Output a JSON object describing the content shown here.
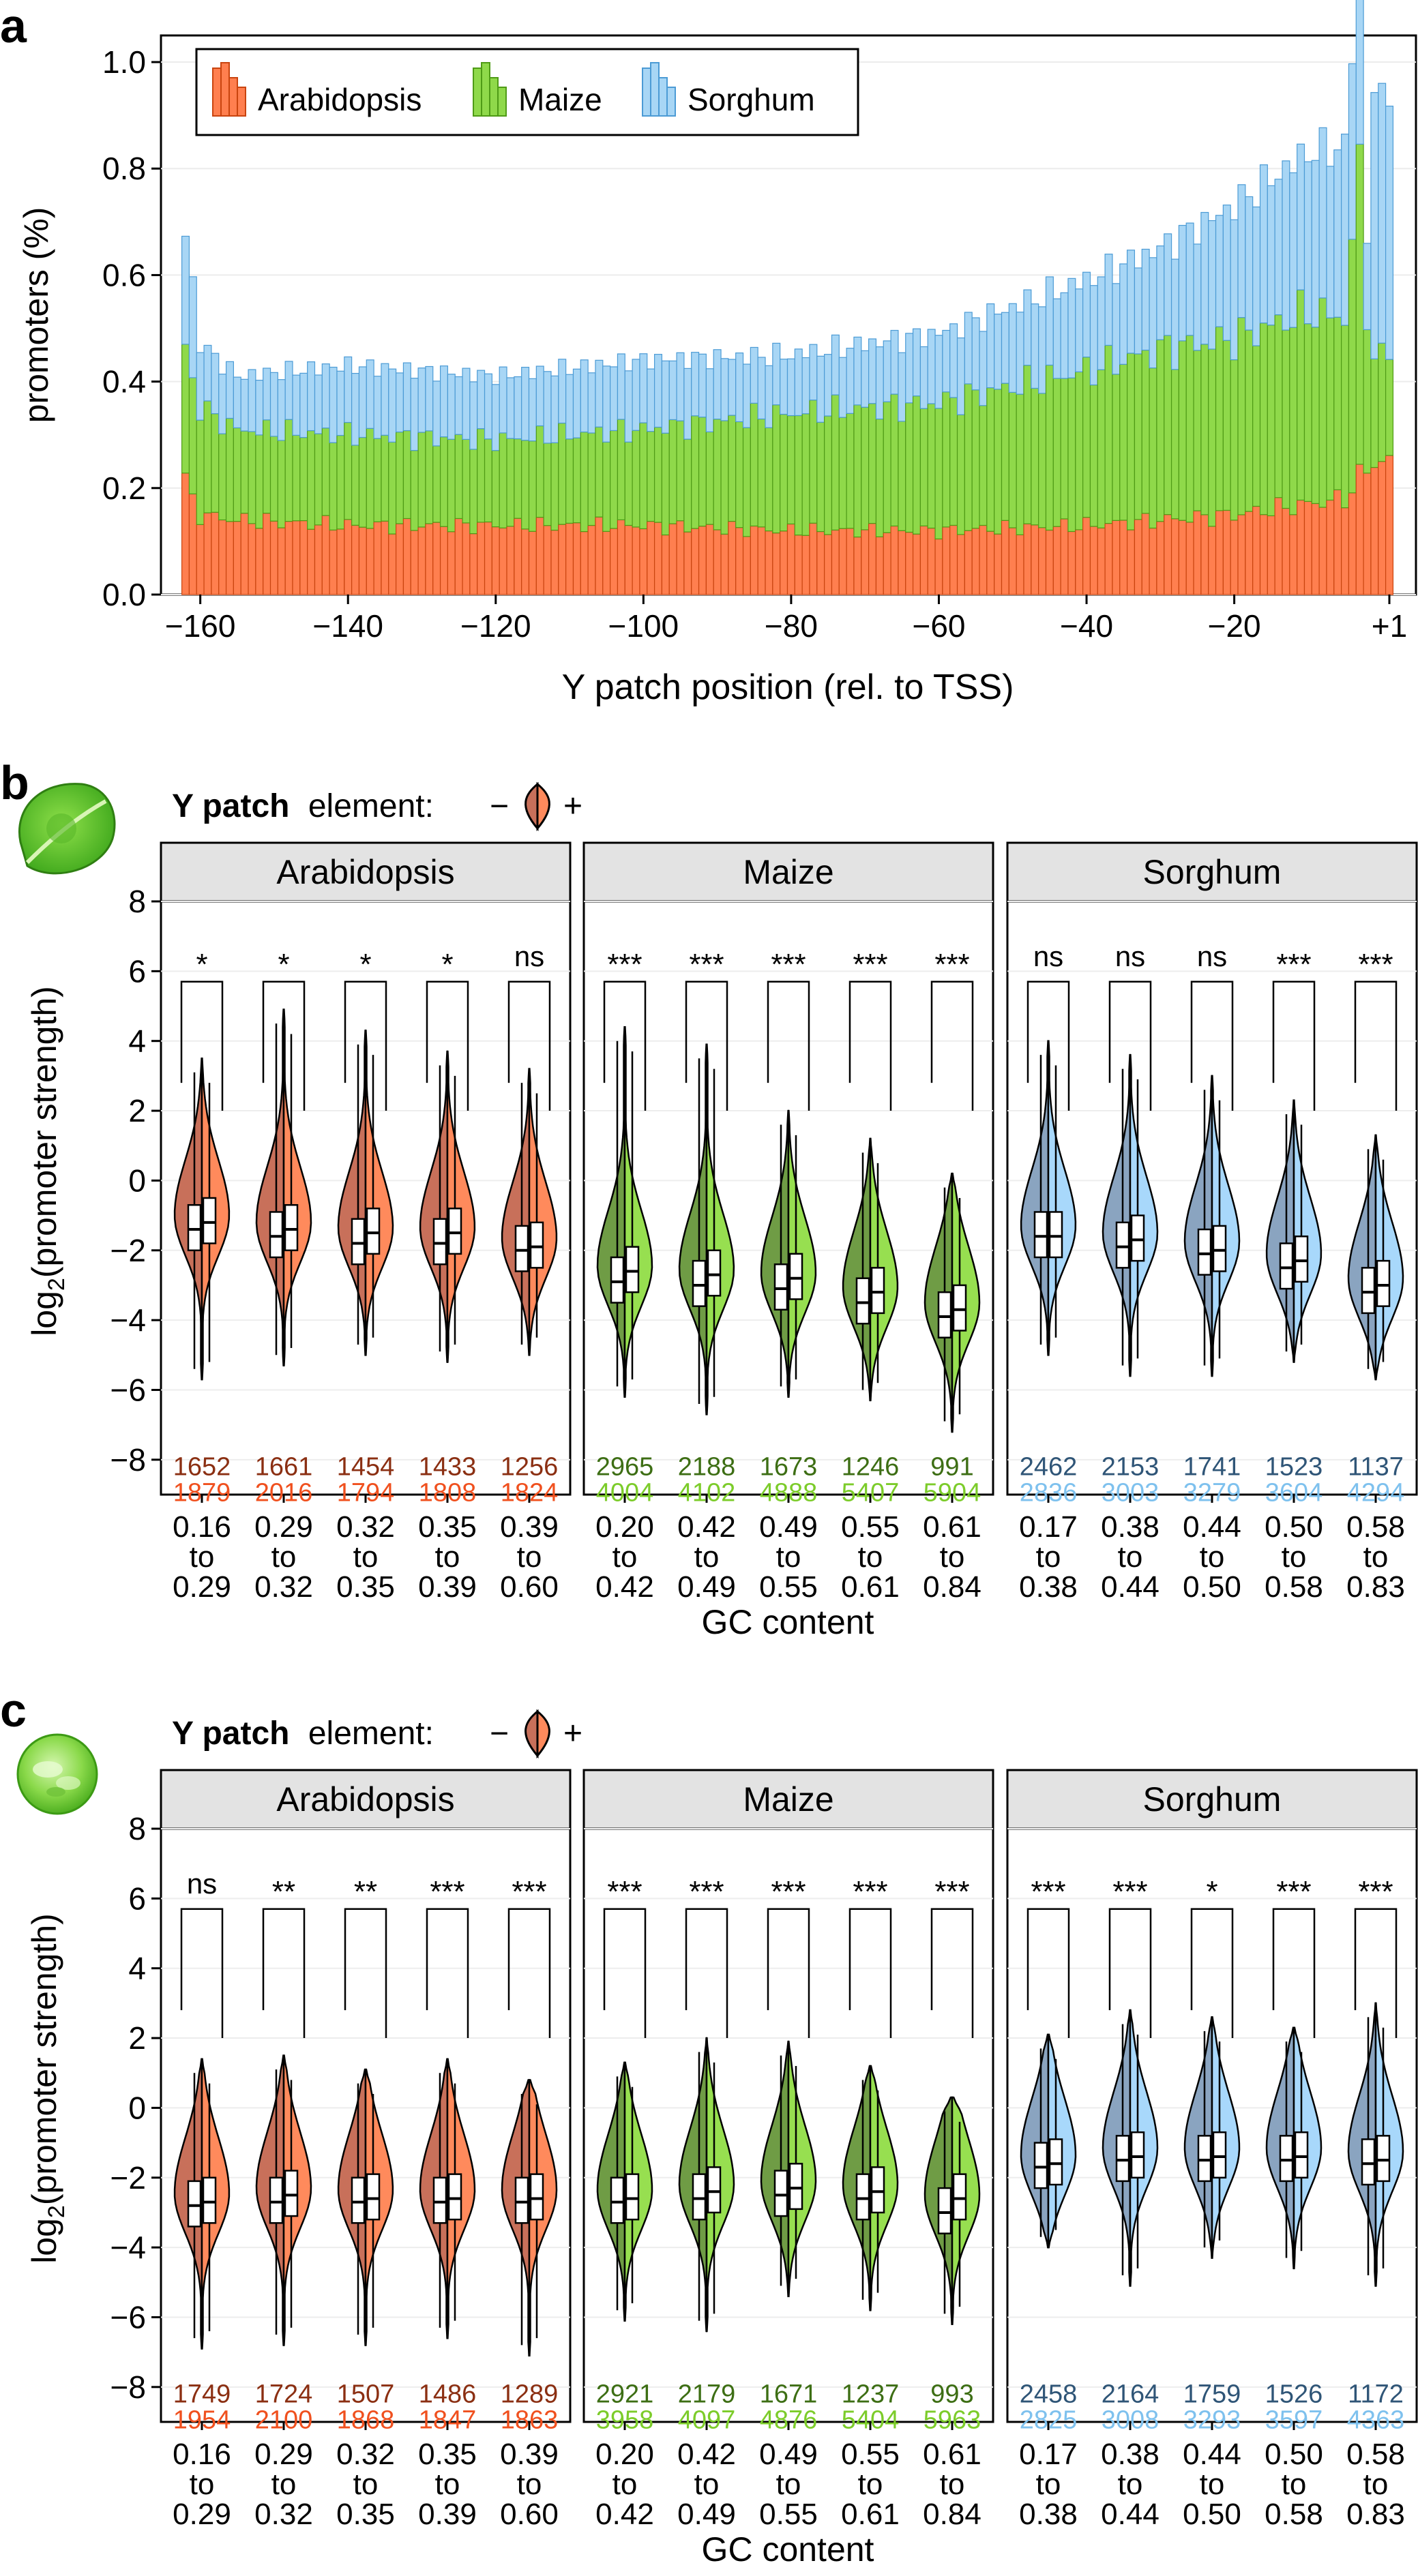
{
  "panel_letters": {
    "a": "a",
    "b": "b",
    "c": "c"
  },
  "element_legend": {
    "title_bold": "Y patch",
    "title_rest": "element:",
    "minus": "−",
    "plus": "+"
  },
  "colors": {
    "arabidopsis_light": "#ff8a5c",
    "arabidopsis_dark": "#c8705a",
    "arabidopsis_text_dark": "#8b2f12",
    "arabidopsis_text_light": "#f0501e",
    "maize_light": "#97df50",
    "maize_dark": "#6f9c45",
    "maize_text_dark": "#3d6e14",
    "maize_text_light": "#7ccc2a",
    "sorghum_light": "#a8d8fb",
    "sorghum_dark": "#8aa4c0",
    "sorghum_text_dark": "#2f5577",
    "sorghum_text_light": "#7ec1ee",
    "strip_bg": "#e3e3e3"
  },
  "chart_data": [
    {
      "type": "bar",
      "stacked": true,
      "xlabel": "Y patch position (rel. to TSS)",
      "ylabel": "promoters (%)",
      "ylim": [
        0,
        1.05
      ],
      "yticks": [
        "0.0",
        "0.2",
        "0.4",
        "0.6",
        "0.8",
        "1.0"
      ],
      "xticks": [
        "−160",
        "−140",
        "−120",
        "−100",
        "−80",
        "−60",
        "−40",
        "−20",
        "+1"
      ],
      "x_range": [
        -162,
        1
      ],
      "legend_position": "top-left",
      "series": [
        {
          "name": "Arabidopsis",
          "color": "#ff7f4f",
          "anchors_x": [
            -162,
            -160,
            -155,
            -140,
            -120,
            -100,
            -80,
            -60,
            -40,
            -20,
            -10,
            -5,
            -3,
            -1
          ],
          "anchors_y": [
            0.21,
            0.15,
            0.14,
            0.13,
            0.13,
            0.13,
            0.12,
            0.12,
            0.13,
            0.15,
            0.17,
            0.18,
            0.22,
            0.25
          ]
        },
        {
          "name": "Maize",
          "color": "#8fd94a",
          "anchors_x": [
            -162,
            -160,
            -155,
            -140,
            -120,
            -100,
            -80,
            -60,
            -40,
            -30,
            -20,
            -10,
            -5,
            -3,
            -2,
            -1
          ],
          "anchors_y": [
            0.25,
            0.2,
            0.17,
            0.17,
            0.16,
            0.18,
            0.22,
            0.24,
            0.29,
            0.32,
            0.33,
            0.36,
            0.34,
            0.58,
            0.3,
            0.2
          ]
        },
        {
          "name": "Sorghum",
          "color": "#a8d6f5",
          "anchors_x": [
            -162,
            -160,
            -155,
            -140,
            -120,
            -100,
            -80,
            -60,
            -40,
            -30,
            -20,
            -10,
            -5,
            -3,
            -2,
            -1
          ],
          "anchors_y": [
            0.23,
            0.12,
            0.1,
            0.13,
            0.12,
            0.13,
            0.11,
            0.13,
            0.17,
            0.19,
            0.25,
            0.3,
            0.32,
            0.4,
            0.15,
            0.5
          ]
        }
      ]
    },
    {
      "type": "violin",
      "panel": "b",
      "ylabel": "log2(promoter strength)",
      "xlabel": "GC content",
      "ylim": [
        -9,
        8
      ],
      "yticks": [
        "8",
        "6",
        "4",
        "2",
        "0",
        "−2",
        "−4",
        "−6",
        "−8"
      ],
      "legend": {
        "minus": "−",
        "plus": "+"
      },
      "facets": [
        {
          "name": "Arabidopsis",
          "palette": "arabidopsis",
          "bins": [
            {
              "gc": [
                "0.16",
                "to",
                "0.29"
              ],
              "sig": "*",
              "n_minus": "1652",
              "n_plus": "1879",
              "median_minus": -1.4,
              "median_plus": -1.2,
              "top": 3.5,
              "bottom": -5.7
            },
            {
              "gc": [
                "0.29",
                "to",
                "0.32"
              ],
              "sig": "*",
              "n_minus": "1661",
              "n_plus": "2016",
              "median_minus": -1.6,
              "median_plus": -1.4,
              "top": 4.9,
              "bottom": -5.3
            },
            {
              "gc": [
                "0.32",
                "to",
                "0.35"
              ],
              "sig": "*",
              "n_minus": "1454",
              "n_plus": "1794",
              "median_minus": -1.8,
              "median_plus": -1.5,
              "top": 4.3,
              "bottom": -5.0
            },
            {
              "gc": [
                "0.35",
                "to",
                "0.39"
              ],
              "sig": "*",
              "n_minus": "1433",
              "n_plus": "1808",
              "median_minus": -1.8,
              "median_plus": -1.5,
              "top": 3.7,
              "bottom": -5.2
            },
            {
              "gc": [
                "0.39",
                "to",
                "0.60"
              ],
              "sig": "ns",
              "n_minus": "1256",
              "n_plus": "1824",
              "median_minus": -2.0,
              "median_plus": -1.9,
              "top": 3.2,
              "bottom": -5.0
            }
          ]
        },
        {
          "name": "Maize",
          "palette": "maize",
          "bins": [
            {
              "gc": [
                "0.20",
                "to",
                "0.42"
              ],
              "sig": "***",
              "n_minus": "2965",
              "n_plus": "4004",
              "median_minus": -2.9,
              "median_plus": -2.6,
              "top": 4.4,
              "bottom": -6.2
            },
            {
              "gc": [
                "0.42",
                "to",
                "0.49"
              ],
              "sig": "***",
              "n_minus": "2188",
              "n_plus": "4102",
              "median_minus": -3.0,
              "median_plus": -2.7,
              "top": 3.9,
              "bottom": -6.7
            },
            {
              "gc": [
                "0.49",
                "to",
                "0.55"
              ],
              "sig": "***",
              "n_minus": "1673",
              "n_plus": "4888",
              "median_minus": -3.1,
              "median_plus": -2.8,
              "top": 2.0,
              "bottom": -6.2
            },
            {
              "gc": [
                "0.55",
                "to",
                "0.61"
              ],
              "sig": "***",
              "n_minus": "1246",
              "n_plus": "5407",
              "median_minus": -3.5,
              "median_plus": -3.2,
              "top": 1.2,
              "bottom": -6.3
            },
            {
              "gc": [
                "0.61",
                "to",
                "0.84"
              ],
              "sig": "***",
              "n_minus": "991",
              "n_plus": "5904",
              "median_minus": -3.9,
              "median_plus": -3.7,
              "top": 0.2,
              "bottom": -7.2
            }
          ]
        },
        {
          "name": "Sorghum",
          "palette": "sorghum",
          "bins": [
            {
              "gc": [
                "0.17",
                "to",
                "0.38"
              ],
              "sig": "ns",
              "n_minus": "2462",
              "n_plus": "2836",
              "median_minus": -1.6,
              "median_plus": -1.6,
              "top": 4.0,
              "bottom": -5.0
            },
            {
              "gc": [
                "0.38",
                "to",
                "0.44"
              ],
              "sig": "ns",
              "n_minus": "2153",
              "n_plus": "3003",
              "median_minus": -1.9,
              "median_plus": -1.7,
              "top": 3.6,
              "bottom": -5.6
            },
            {
              "gc": [
                "0.44",
                "to",
                "0.50"
              ],
              "sig": "ns",
              "n_minus": "1741",
              "n_plus": "3279",
              "median_minus": -2.1,
              "median_plus": -2.0,
              "top": 3.0,
              "bottom": -5.6
            },
            {
              "gc": [
                "0.50",
                "to",
                "0.58"
              ],
              "sig": "***",
              "n_minus": "1523",
              "n_plus": "3604",
              "median_minus": -2.5,
              "median_plus": -2.3,
              "top": 2.3,
              "bottom": -5.2
            },
            {
              "gc": [
                "0.58",
                "to",
                "0.83"
              ],
              "sig": "***",
              "n_minus": "1137",
              "n_plus": "4294",
              "median_minus": -3.2,
              "median_plus": -3.0,
              "top": 1.3,
              "bottom": -5.7
            }
          ]
        }
      ]
    },
    {
      "type": "violin",
      "panel": "c",
      "ylabel": "log2(promoter strength)",
      "xlabel": "GC content",
      "ylim": [
        -9,
        8
      ],
      "yticks": [
        "8",
        "6",
        "4",
        "2",
        "0",
        "−2",
        "−4",
        "−6",
        "−8"
      ],
      "legend": {
        "minus": "−",
        "plus": "+"
      },
      "facets": [
        {
          "name": "Arabidopsis",
          "palette": "arabidopsis",
          "bins": [
            {
              "gc": [
                "0.16",
                "to",
                "0.29"
              ],
              "sig": "ns",
              "n_minus": "1749",
              "n_plus": "1954",
              "median_minus": -2.8,
              "median_plus": -2.7,
              "top": 1.4,
              "bottom": -6.9
            },
            {
              "gc": [
                "0.29",
                "to",
                "0.32"
              ],
              "sig": "**",
              "n_minus": "1724",
              "n_plus": "2100",
              "median_minus": -2.7,
              "median_plus": -2.5,
              "top": 1.5,
              "bottom": -6.8
            },
            {
              "gc": [
                "0.32",
                "to",
                "0.35"
              ],
              "sig": "**",
              "n_minus": "1507",
              "n_plus": "1868",
              "median_minus": -2.7,
              "median_plus": -2.6,
              "top": 1.1,
              "bottom": -6.8
            },
            {
              "gc": [
                "0.35",
                "to",
                "0.39"
              ],
              "sig": "***",
              "n_minus": "1486",
              "n_plus": "1847",
              "median_minus": -2.7,
              "median_plus": -2.6,
              "top": 1.4,
              "bottom": -6.6
            },
            {
              "gc": [
                "0.39",
                "to",
                "0.60"
              ],
              "sig": "***",
              "n_minus": "1289",
              "n_plus": "1863",
              "median_minus": -2.7,
              "median_plus": -2.6,
              "top": 0.8,
              "bottom": -7.1
            }
          ]
        },
        {
          "name": "Maize",
          "palette": "maize",
          "bins": [
            {
              "gc": [
                "0.20",
                "to",
                "0.42"
              ],
              "sig": "***",
              "n_minus": "2921",
              "n_plus": "3958",
              "median_minus": -2.7,
              "median_plus": -2.6,
              "top": 1.3,
              "bottom": -6.1
            },
            {
              "gc": [
                "0.42",
                "to",
                "0.49"
              ],
              "sig": "***",
              "n_minus": "2179",
              "n_plus": "4097",
              "median_minus": -2.6,
              "median_plus": -2.4,
              "top": 2.0,
              "bottom": -6.4
            },
            {
              "gc": [
                "0.49",
                "to",
                "0.55"
              ],
              "sig": "***",
              "n_minus": "1671",
              "n_plus": "4876",
              "median_minus": -2.5,
              "median_plus": -2.3,
              "top": 1.9,
              "bottom": -5.4
            },
            {
              "gc": [
                "0.55",
                "to",
                "0.61"
              ],
              "sig": "***",
              "n_minus": "1237",
              "n_plus": "5404",
              "median_minus": -2.6,
              "median_plus": -2.4,
              "top": 1.2,
              "bottom": -5.8
            },
            {
              "gc": [
                "0.61",
                "to",
                "0.84"
              ],
              "sig": "***",
              "n_minus": "993",
              "n_plus": "5963",
              "median_minus": -3.0,
              "median_plus": -2.6,
              "top": 0.3,
              "bottom": -6.2
            }
          ]
        },
        {
          "name": "Sorghum",
          "palette": "sorghum",
          "bins": [
            {
              "gc": [
                "0.17",
                "to",
                "0.38"
              ],
              "sig": "***",
              "n_minus": "2458",
              "n_plus": "2825",
              "median_minus": -1.7,
              "median_plus": -1.6,
              "top": 2.1,
              "bottom": -4.0
            },
            {
              "gc": [
                "0.38",
                "to",
                "0.44"
              ],
              "sig": "***",
              "n_minus": "2164",
              "n_plus": "3008",
              "median_minus": -1.5,
              "median_plus": -1.4,
              "top": 2.8,
              "bottom": -5.1
            },
            {
              "gc": [
                "0.44",
                "to",
                "0.50"
              ],
              "sig": "*",
              "n_minus": "1759",
              "n_plus": "3293",
              "median_minus": -1.5,
              "median_plus": -1.4,
              "top": 2.6,
              "bottom": -4.3
            },
            {
              "gc": [
                "0.50",
                "to",
                "0.58"
              ],
              "sig": "***",
              "n_minus": "1526",
              "n_plus": "3597",
              "median_minus": -1.5,
              "median_plus": -1.4,
              "top": 2.3,
              "bottom": -4.6
            },
            {
              "gc": [
                "0.58",
                "to",
                "0.83"
              ],
              "sig": "***",
              "n_minus": "1172",
              "n_plus": "4363",
              "median_minus": -1.6,
              "median_plus": -1.5,
              "top": 3.0,
              "bottom": -5.1
            }
          ]
        }
      ]
    }
  ]
}
